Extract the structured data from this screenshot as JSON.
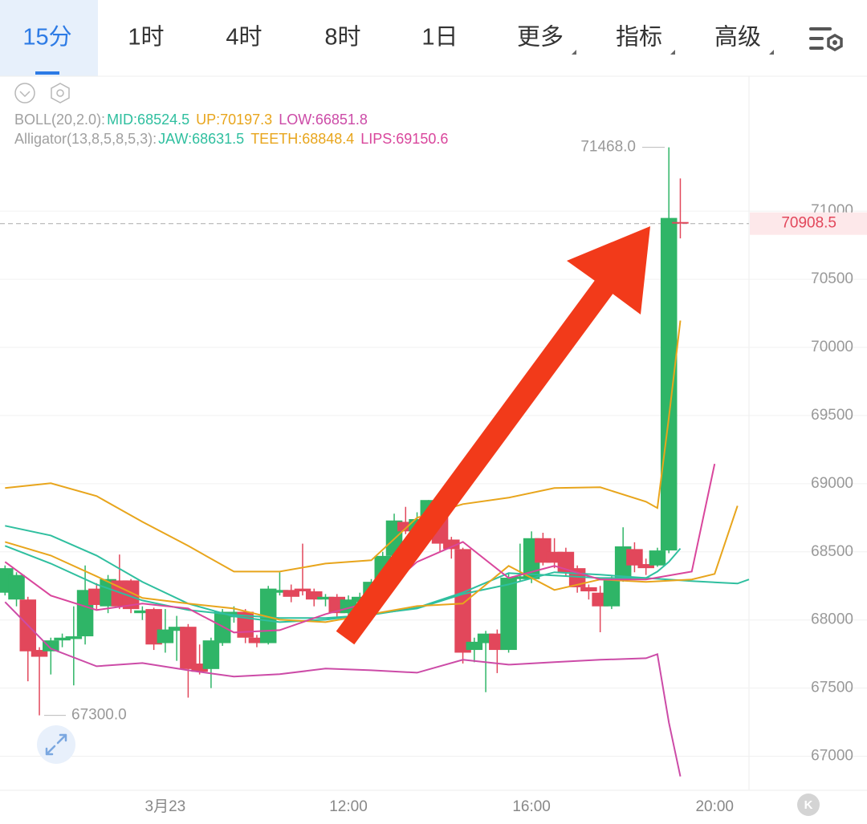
{
  "tabs": [
    "15分",
    "1时",
    "4时",
    "8时",
    "1日",
    "更多",
    "指标",
    "高级"
  ],
  "corner_badge": "K",
  "chart_data": {
    "type": "candlestick",
    "x": [
      4.5,
      4.75,
      5,
      5.25,
      5.5,
      5.75,
      6,
      6.25,
      6.5,
      6.75,
      7,
      7.25,
      7.5,
      7.75,
      8,
      8.25,
      8.5,
      8.75,
      9,
      9.25,
      9.5,
      9.75,
      10,
      10.25,
      10.5,
      10.75,
      11,
      11.25,
      11.5,
      11.75,
      12,
      12.25,
      12.5,
      12.75,
      13,
      13.25,
      13.5,
      13.75,
      14,
      14.25,
      14.5,
      14.75,
      15,
      15.25,
      15.5,
      15.75,
      16,
      16.25,
      16.5,
      16.75,
      17,
      17.25,
      17.5,
      17.75,
      18,
      18.25,
      18.5,
      18.75,
      19,
      19.25
    ],
    "open": [
      68200,
      68150,
      68150,
      67780,
      67770,
      67850,
      67860,
      67880,
      68230,
      68100,
      68290,
      68290,
      68050,
      68080,
      67830,
      67920,
      67950,
      67680,
      67640,
      67830,
      68020,
      68060,
      67870,
      67830,
      68200,
      68220,
      68230,
      68210,
      68150,
      68170,
      68050,
      68130,
      68170,
      68280,
      68470,
      68720,
      68650,
      68740,
      68800,
      68590,
      68520,
      67780,
      67830,
      67900,
      67780,
      68300,
      68300,
      68600,
      68500,
      68500,
      68380,
      68240,
      68200,
      68100,
      68300,
      68520,
      68410,
      68400,
      68510,
      70920
    ],
    "high": [
      68400,
      68350,
      68170,
      67800,
      67870,
      67900,
      68100,
      68400,
      68270,
      68330,
      68480,
      68300,
      68100,
      68090,
      68080,
      68030,
      67970,
      67820,
      67870,
      68080,
      68100,
      68080,
      67890,
      68250,
      68350,
      68260,
      68560,
      68230,
      68190,
      68190,
      68180,
      68200,
      68300,
      68500,
      68780,
      68830,
      68790,
      68880,
      68830,
      68610,
      68530,
      67870,
      67920,
      67930,
      68340,
      68560,
      68650,
      68640,
      68600,
      68530,
      68400,
      68260,
      68250,
      68320,
      68680,
      68570,
      68450,
      68530,
      71468,
      71240
    ],
    "low": [
      68180,
      68100,
      67550,
      67300,
      67600,
      67800,
      67520,
      67820,
      68080,
      68050,
      68080,
      68050,
      68000,
      67780,
      67760,
      67700,
      67430,
      67600,
      67500,
      67810,
      67980,
      67830,
      67800,
      67820,
      68180,
      68130,
      68180,
      68100,
      68100,
      68020,
      68030,
      68100,
      68150,
      68250,
      68450,
      68630,
      68620,
      68700,
      68500,
      68450,
      67680,
      67690,
      67470,
      67610,
      67760,
      68280,
      68270,
      68400,
      68380,
      68320,
      68200,
      68150,
      67910,
      68080,
      68280,
      68350,
      68330,
      68390,
      68490,
      70800
    ],
    "close": [
      68380,
      68330,
      67770,
      67730,
      67850,
      67870,
      67880,
      68220,
      68110,
      68300,
      68100,
      68080,
      68070,
      67820,
      67930,
      67950,
      67640,
      67620,
      67850,
      68060,
      68060,
      67870,
      67830,
      68230,
      68220,
      68170,
      68210,
      68150,
      68170,
      68050,
      68150,
      68170,
      68280,
      68470,
      68730,
      68650,
      68740,
      68880,
      68560,
      68520,
      67760,
      67840,
      67900,
      67780,
      68310,
      68320,
      68600,
      68420,
      68420,
      68350,
      68240,
      68210,
      68100,
      68300,
      68540,
      68400,
      68380,
      68510,
      70950,
      70908.5
    ],
    "up_color": "#2fb567",
    "down_color": "#e2475b",
    "xlim": [
      4.39,
      20.75
    ],
    "xticks": [
      {
        "value": 8,
        "label": "3月23"
      },
      {
        "value": 12,
        "label": "12:00"
      },
      {
        "value": 16,
        "label": "16:00"
      },
      {
        "value": 20,
        "label": "20:00"
      }
    ],
    "ylim": [
      66750,
      71990
    ],
    "yticks": [
      67000,
      67500,
      68000,
      68500,
      69000,
      69500,
      70000,
      70500,
      71000
    ],
    "grid": true,
    "overlays": [
      {
        "label": "BOLL(20,2.0):",
        "series": [
          {
            "name": "MID:68524.5",
            "color": "#2fbf9f",
            "x": [
              4.5,
              5.5,
              6.5,
              7.5,
              8.5,
              9.5,
              10.5,
              11.5,
              12.5,
              13.5,
              14.5,
              15.5,
              16.5,
              17.5,
              18.5,
              18.75,
              19,
              19.25
            ],
            "values": [
              68691,
              68620,
              68473,
              68279,
              68120,
              68026,
              67984,
              68002,
              68043,
              68084,
              68190,
              68261,
              68350,
              68332,
              68308,
              68355,
              68426,
              68524.5
            ]
          },
          {
            "name": "UP:70197.3",
            "color": "#e8a51c",
            "x": [
              4.5,
              5.5,
              6.5,
              7.5,
              8.5,
              9.5,
              10.5,
              11.5,
              12.5,
              13.5,
              14.5,
              15.5,
              16.5,
              17.5,
              18.5,
              18.75,
              19,
              19.25
            ],
            "values": [
              68968,
              69003,
              68909,
              68720,
              68544,
              68355,
              68355,
              68414,
              68438,
              68750,
              68850,
              68897,
              68968,
              68974,
              68868,
              68821,
              69486,
              70197.3
            ]
          },
          {
            "name": "LOW:66851.8",
            "color": "#cc4ba7",
            "x": [
              4.5,
              5.5,
              6.5,
              7.5,
              8.5,
              9.5,
              10.5,
              11.5,
              12.5,
              13.5,
              14.5,
              15.5,
              16.5,
              17.5,
              18.5,
              18.75,
              19,
              19.25
            ],
            "values": [
              68132,
              67790,
              67660,
              67684,
              67631,
              67584,
              67602,
              67643,
              67631,
              67613,
              67708,
              67672,
              67690,
              67708,
              67719,
              67749,
              67248,
              66851.8
            ]
          }
        ]
      },
      {
        "label": "Alligator(13,8,5,8,5,3):",
        "series": [
          {
            "name": "JAW:68631.5",
            "color": "#2fbf9f",
            "x": [
              4.5,
              5.5,
              6.5,
              7.5,
              8.5,
              9.5,
              10.5,
              11.5,
              12.5,
              13.5,
              14.5,
              15.5,
              16.5,
              17.5,
              18.5,
              19.5,
              20.5,
              20.75
            ],
            "values": [
              68544,
              68414,
              68261,
              68143,
              68073,
              68037,
              68014,
              68014,
              68037,
              68090,
              68202,
              68344,
              68326,
              68308,
              68308,
              68285,
              68267,
              68297
            ]
          },
          {
            "name": "TEETH:68848.4",
            "color": "#e8a51c",
            "x": [
              4.5,
              5.5,
              6.5,
              7.5,
              8.5,
              9.5,
              10.5,
              11.5,
              12.5,
              13.5,
              14.5,
              15.5,
              16.5,
              17.5,
              18.5,
              19.5,
              20,
              20.5
            ],
            "values": [
              68573,
              68473,
              68320,
              68161,
              68120,
              68084,
              68002,
              67984,
              68043,
              68102,
              68120,
              68397,
              68220,
              68297,
              68279,
              68297,
              68338,
              68838
            ]
          },
          {
            "name": "LIPS:69150.6",
            "color": "#d9469c",
            "x": [
              4.5,
              5.5,
              6.5,
              7.5,
              8.5,
              9.5,
              10.5,
              11.5,
              12.5,
              13.5,
              14.5,
              15.5,
              16.5,
              17.5,
              18.5,
              19.5,
              20
            ],
            "values": [
              68426,
              68179,
              68073,
              68120,
              68084,
              67908,
              67925,
              68043,
              68132,
              68426,
              68573,
              68308,
              68397,
              68297,
              68297,
              68355,
              69145
            ]
          }
        ]
      }
    ],
    "annotations": [
      {
        "value": 71468,
        "label": "71468.0"
      },
      {
        "value": 67300,
        "label": "67300.0"
      }
    ],
    "last_price": {
      "value": 70908.5,
      "label": "70908.5"
    }
  }
}
